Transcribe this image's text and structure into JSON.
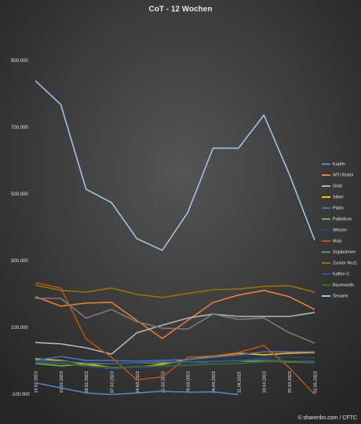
{
  "chart_data": {
    "type": "line",
    "title": "CoT - 12 Wochen",
    "source": "© shareribs.com / CFTC",
    "categories": [
      "14.02.2023",
      "21.02.2023",
      "28.02.2023",
      "07.03.2023",
      "14.03.2023",
      "21.03.2023",
      "28.03.2023",
      "04.04.2023",
      "11.04.2023",
      "18.04.2023",
      "25.04.2023",
      "02.05.2023"
    ],
    "ylim": [
      -100000,
      950000
    ],
    "yticks": [
      {
        "value": 900000,
        "label": "900.000"
      },
      {
        "value": 700000,
        "label": "700.000"
      },
      {
        "value": 500000,
        "label": "500.000"
      },
      {
        "value": 300000,
        "label": "300.000"
      },
      {
        "value": 100000,
        "label": "100.000"
      },
      {
        "value": -100000,
        "label": "-100.000"
      }
    ],
    "grid": false,
    "legend": "right",
    "series": [
      {
        "name": "Kupfer",
        "color": "#4a8ac9",
        "values": [
          -65000,
          -80000,
          -95000,
          -100000,
          -95000,
          -90000,
          -93000,
          -92000,
          -100000,
          null,
          null,
          null
        ]
      },
      {
        "name": "WTI Rohöl",
        "color": "#ed7d31",
        "values": [
          193000,
          165000,
          174000,
          176000,
          122000,
          68000,
          122000,
          176000,
          198000,
          212000,
          193000,
          155000
        ]
      },
      {
        "name": "Gold",
        "color": "#b4b4b4",
        "values": [
          56000,
          52000,
          40000,
          21000,
          85000,
          108000,
          129000,
          141000,
          134000,
          134000,
          134000,
          146000
        ]
      },
      {
        "name": "Silber",
        "color": "#ffc000",
        "values": [
          7000,
          2000,
          -9000,
          -19000,
          -19000,
          -9000,
          5000,
          14000,
          24000,
          19000,
          24000,
          26000
        ]
      },
      {
        "name": "Platin",
        "color": "#4472c4",
        "values": [
          2000,
          14000,
          2000,
          2000,
          0,
          2000,
          5000,
          12000,
          19000,
          28000,
          28000,
          28000
        ]
      },
      {
        "name": "Palladium",
        "color": "#70ad47",
        "values": [
          -7000,
          -14000,
          -9000,
          -7000,
          -5000,
          -5000,
          -2000,
          -2000,
          0,
          0,
          -2000,
          -5000
        ]
      },
      {
        "name": "Weizen",
        "color": "#264478",
        "values": [
          -2000,
          -5000,
          -16000,
          -24000,
          -19000,
          -16000,
          -14000,
          -2000,
          0,
          12000,
          12000,
          9000
        ]
      },
      {
        "name": "Mais",
        "color": "#b5540f",
        "values": [
          235000,
          219000,
          66000,
          12000,
          -56000,
          -47000,
          12000,
          16000,
          26000,
          47000,
          -19000,
          -100000
        ]
      },
      {
        "name": "Sojabohnen",
        "color": "#7a7a7a",
        "values": [
          188000,
          188000,
          129000,
          155000,
          118000,
          99000,
          96000,
          141000,
          125000,
          129000,
          85000,
          54000
        ]
      },
      {
        "name": "Zucker No11",
        "color": "#997300",
        "values": [
          228000,
          212000,
          207000,
          219000,
          200000,
          191000,
          203000,
          214000,
          216000,
          224000,
          226000,
          207000
        ]
      },
      {
        "name": "Kaffee C",
        "color": "#255e91",
        "values": [
          0,
          0,
          -5000,
          -7000,
          -5000,
          -2000,
          -2000,
          0,
          2000,
          5000,
          0,
          -5000
        ]
      },
      {
        "name": "Baumwolle",
        "color": "#43682b",
        "values": [
          -5000,
          -7000,
          -14000,
          -19000,
          -16000,
          -14000,
          -12000,
          -9000,
          -7000,
          -2000,
          0,
          0
        ]
      },
      {
        "name": "Gesamt",
        "color": "#9dc3e6",
        "values": [
          840000,
          769000,
          515000,
          475000,
          367000,
          332000,
          445000,
          638000,
          638000,
          737000,
          560000,
          362000
        ]
      }
    ]
  }
}
